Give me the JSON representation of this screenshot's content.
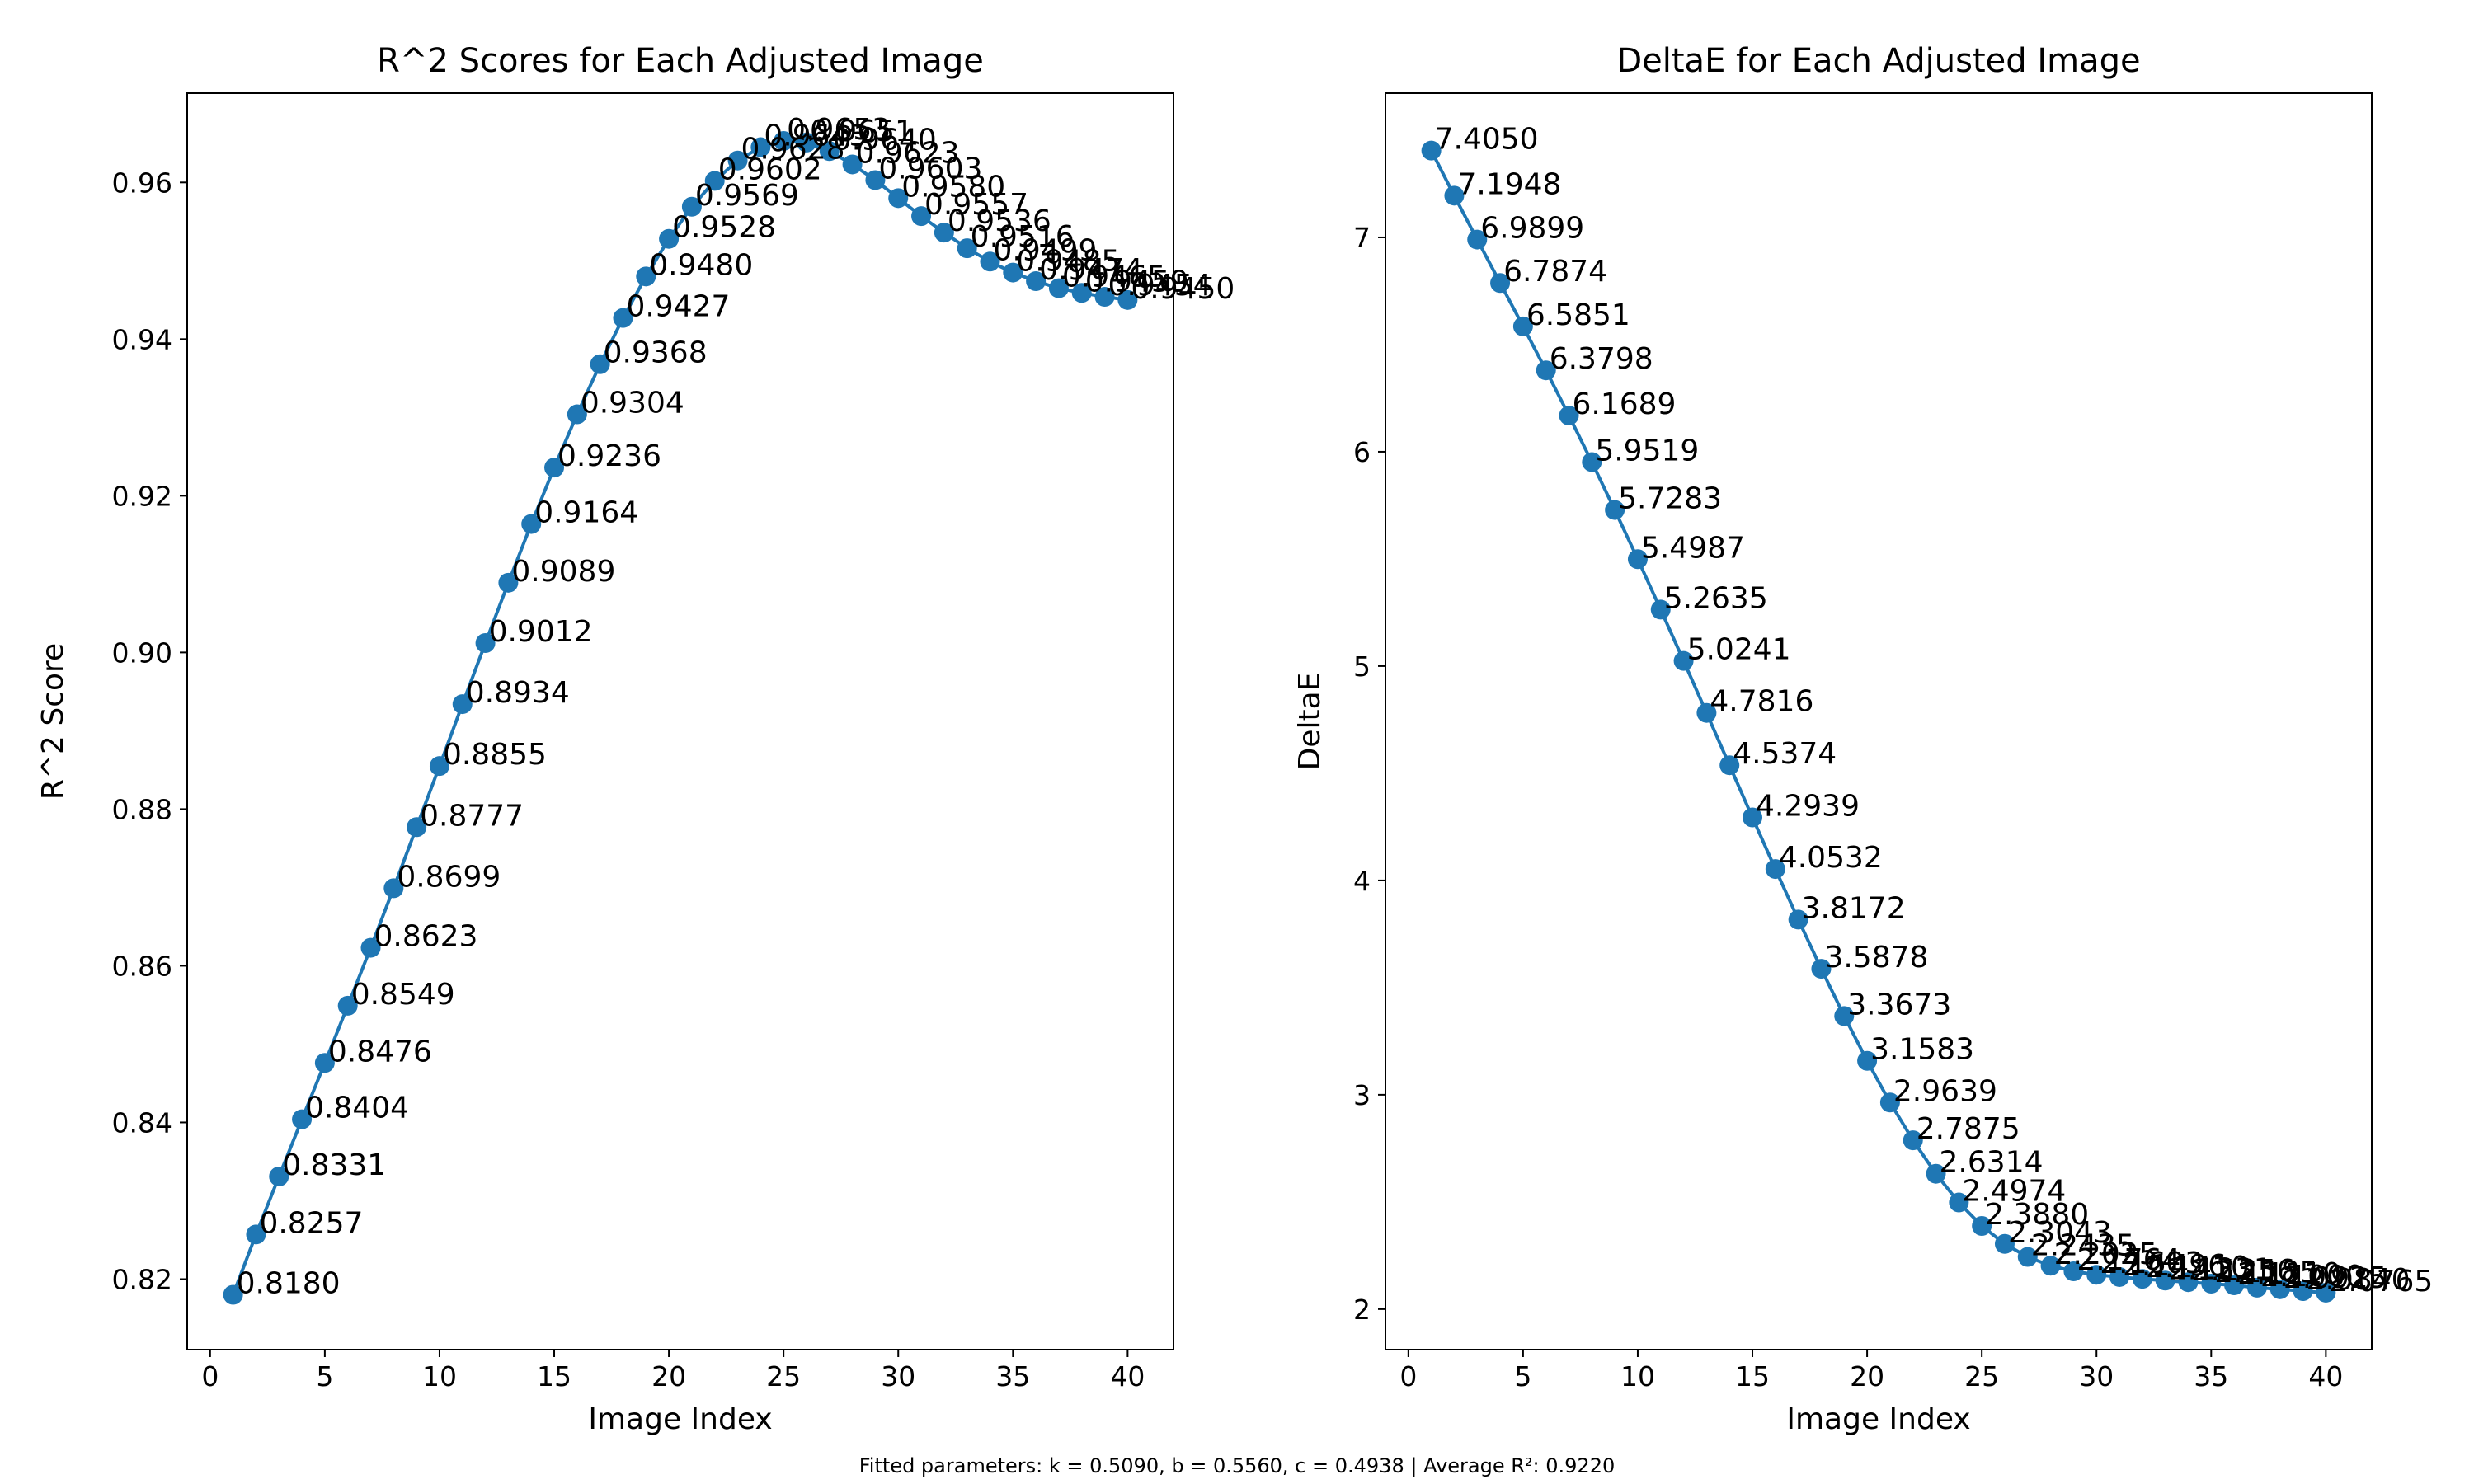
{
  "footer_text": "Fitted parameters: k = 0.5090, b = 0.5560, c = 0.4938 | Average R²: 0.9220",
  "colors": {
    "series": "#1f77b4",
    "text": "#000000",
    "axis": "#000000"
  },
  "chart_data": [
    {
      "type": "line",
      "title": "R^2 Scores for Each Adjusted Image",
      "xlabel": "Image Index",
      "ylabel": "R^2 Score",
      "xlim": [
        -1,
        42
      ],
      "ylim": [
        0.811,
        0.9714
      ],
      "xticks": [
        0,
        5,
        10,
        15,
        20,
        25,
        30,
        35,
        40
      ],
      "yticks": [
        0.82,
        0.84,
        0.86,
        0.88,
        0.9,
        0.92,
        0.94,
        0.96
      ],
      "ytick_labels": [
        "0.82",
        "0.84",
        "0.86",
        "0.88",
        "0.90",
        "0.92",
        "0.94",
        "0.96"
      ],
      "grid": false,
      "marker": "circle",
      "x": [
        1,
        2,
        3,
        4,
        5,
        6,
        7,
        8,
        9,
        10,
        11,
        12,
        13,
        14,
        15,
        16,
        17,
        18,
        19,
        20,
        21,
        22,
        23,
        24,
        25,
        26,
        27,
        28,
        29,
        30,
        31,
        32,
        33,
        34,
        35,
        36,
        37,
        38,
        39,
        40
      ],
      "values": [
        0.818,
        0.8257,
        0.8331,
        0.8404,
        0.8476,
        0.8549,
        0.8623,
        0.8699,
        0.8777,
        0.8855,
        0.8934,
        0.9012,
        0.9089,
        0.9164,
        0.9236,
        0.9304,
        0.9368,
        0.9427,
        0.948,
        0.9528,
        0.9569,
        0.9602,
        0.9628,
        0.9645,
        0.9653,
        0.9651,
        0.964,
        0.9623,
        0.9603,
        0.958,
        0.9557,
        0.9536,
        0.9516,
        0.9499,
        0.9485,
        0.9474,
        0.9465,
        0.9459,
        0.9454,
        0.945
      ],
      "data_labels": [
        "0.8180",
        "0.8257",
        "0.8331",
        "0.8404",
        "0.8476",
        "0.8549",
        "0.8623",
        "0.8699",
        "0.8777",
        "0.8855",
        "0.8934",
        "0.9012",
        "0.9089",
        "0.9164",
        "0.9236",
        "0.9304",
        "0.9368",
        "0.9427",
        "0.9480",
        "0.9528",
        "0.9569",
        "0.9602",
        "0.9628",
        "0.9645",
        "0.9653",
        "0.9651",
        "0.9640",
        "0.9623",
        "0.9603",
        "0.9580",
        "0.9557",
        "0.9536",
        "0.9516",
        "0.9499",
        "0.9485",
        "0.9474",
        "0.9465",
        "0.9459",
        "0.9454",
        "0.9450"
      ]
    },
    {
      "type": "line",
      "title": "DeltaE for Each Adjusted Image",
      "xlabel": "Image Index",
      "ylabel": "DeltaE",
      "xlim": [
        -1,
        42
      ],
      "ylim": [
        1.811,
        7.673
      ],
      "xticks": [
        0,
        5,
        10,
        15,
        20,
        25,
        30,
        35,
        40
      ],
      "yticks": [
        2,
        3,
        4,
        5,
        6,
        7
      ],
      "ytick_labels": [
        "2",
        "3",
        "4",
        "5",
        "6",
        "7"
      ],
      "grid": false,
      "marker": "circle",
      "x": [
        1,
        2,
        3,
        4,
        5,
        6,
        7,
        8,
        9,
        10,
        11,
        12,
        13,
        14,
        15,
        16,
        17,
        18,
        19,
        20,
        21,
        22,
        23,
        24,
        25,
        26,
        27,
        28,
        29,
        30,
        31,
        32,
        33,
        34,
        35,
        36,
        37,
        38,
        39,
        40
      ],
      "values": [
        7.405,
        7.1948,
        6.9899,
        6.7874,
        6.5851,
        6.3798,
        6.1689,
        5.9519,
        5.7283,
        5.4987,
        5.2635,
        5.0241,
        4.7816,
        4.5374,
        4.2939,
        4.0532,
        3.8172,
        3.5878,
        3.3673,
        3.1583,
        2.9639,
        2.7875,
        2.6314,
        2.4974,
        2.388,
        2.3043,
        2.2435,
        2.2025,
        2.1764,
        2.1603,
        2.1496,
        2.141,
        2.1331,
        2.1256,
        2.1185,
        2.111,
        2.1,
        2.0925,
        2.084,
        2.0765
      ],
      "data_labels": [
        "7.4050",
        "7.1948",
        "6.9899",
        "6.7874",
        "6.5851",
        "6.3798",
        "6.1689",
        "5.9519",
        "5.7283",
        "5.4987",
        "5.2635",
        "5.0241",
        "4.7816",
        "4.5374",
        "4.2939",
        "4.0532",
        "3.8172",
        "3.5878",
        "3.3673",
        "3.1583",
        "2.9639",
        "2.7875",
        "2.6314",
        "2.4974",
        "2.3880",
        "2.3043",
        "2.2435",
        "2.2025",
        "2.1764",
        "2.1603",
        "2.1496",
        "2.1410",
        "2.1331",
        "2.1256",
        "2.1185",
        "2.1110",
        "2.1000",
        "2.0925",
        "2.0840",
        "2.0765"
      ]
    }
  ]
}
